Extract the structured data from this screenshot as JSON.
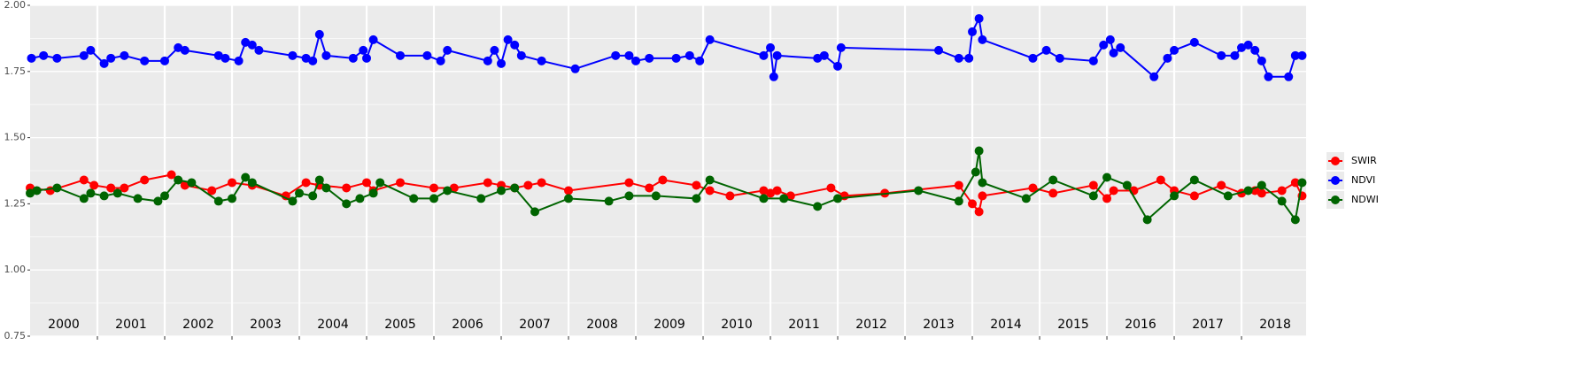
{
  "chart_data": {
    "type": "line",
    "xlim": [
      2000,
      2018.96
    ],
    "ylim": [
      0.75,
      2.0
    ],
    "yticks": [
      {
        "value": 0.75,
        "label": "0.75"
      },
      {
        "value": 1.0,
        "label": "1.00"
      },
      {
        "value": 1.25,
        "label": "1.25"
      },
      {
        "value": 1.5,
        "label": "1.50"
      },
      {
        "value": 1.75,
        "label": "1.75"
      },
      {
        "value": 2.0,
        "label": "2.00"
      }
    ],
    "xticks": [
      {
        "value": 2000.5,
        "label": "2000"
      },
      {
        "value": 2001.5,
        "label": "2001"
      },
      {
        "value": 2002.5,
        "label": "2002"
      },
      {
        "value": 2003.5,
        "label": "2003"
      },
      {
        "value": 2004.5,
        "label": "2004"
      },
      {
        "value": 2005.5,
        "label": "2005"
      },
      {
        "value": 2006.5,
        "label": "2006"
      },
      {
        "value": 2007.5,
        "label": "2007"
      },
      {
        "value": 2008.5,
        "label": "2008"
      },
      {
        "value": 2009.5,
        "label": "2009"
      },
      {
        "value": 2010.5,
        "label": "2010"
      },
      {
        "value": 2011.5,
        "label": "2011"
      },
      {
        "value": 2012.5,
        "label": "2012"
      },
      {
        "value": 2013.5,
        "label": "2013"
      },
      {
        "value": 2014.5,
        "label": "2014"
      },
      {
        "value": 2015.5,
        "label": "2015"
      },
      {
        "value": 2016.5,
        "label": "2016"
      },
      {
        "value": 2017.5,
        "label": "2017"
      },
      {
        "value": 2018.5,
        "label": "2018"
      }
    ],
    "xgrid": [
      2001,
      2002,
      2003,
      2004,
      2005,
      2006,
      2007,
      2008,
      2009,
      2010,
      2011,
      2012,
      2013,
      2014,
      2015,
      2016,
      2017,
      2018
    ],
    "grid": true,
    "legend": "right",
    "series": [
      {
        "name": "SWIR",
        "color": "#ff0000",
        "x": [
          2000.0,
          2000.3,
          2000.8,
          2000.95,
          2001.2,
          2001.4,
          2001.7,
          2002.1,
          2002.3,
          2002.7,
          2003.0,
          2003.3,
          2003.8,
          2004.1,
          2004.3,
          2004.7,
          2005.0,
          2005.1,
          2005.5,
          2006.0,
          2006.3,
          2006.8,
          2007.0,
          2007.2,
          2007.4,
          2007.6,
          2008.0,
          2008.9,
          2009.2,
          2009.4,
          2009.9,
          2010.1,
          2010.4,
          2010.9,
          2011.0,
          2011.1,
          2011.3,
          2011.9,
          2012.1,
          2012.7,
          2013.8,
          2014.0,
          2014.1,
          2014.15,
          2014.9,
          2015.2,
          2015.8,
          2016.0,
          2016.1,
          2016.4,
          2016.8,
          2017.0,
          2017.3,
          2017.7,
          2018.0,
          2018.2,
          2018.3,
          2018.6,
          2018.8,
          2018.9
        ],
        "values": [
          1.31,
          1.3,
          1.34,
          1.32,
          1.31,
          1.31,
          1.34,
          1.36,
          1.32,
          1.3,
          1.33,
          1.32,
          1.28,
          1.33,
          1.32,
          1.31,
          1.33,
          1.3,
          1.33,
          1.31,
          1.31,
          1.33,
          1.32,
          1.31,
          1.32,
          1.33,
          1.3,
          1.33,
          1.31,
          1.34,
          1.32,
          1.3,
          1.28,
          1.3,
          1.29,
          1.3,
          1.28,
          1.31,
          1.28,
          1.29,
          1.32,
          1.25,
          1.22,
          1.28,
          1.31,
          1.29,
          1.32,
          1.27,
          1.3,
          1.3,
          1.34,
          1.3,
          1.28,
          1.32,
          1.29,
          1.3,
          1.29,
          1.3,
          1.33,
          1.28
        ]
      },
      {
        "name": "NDVI",
        "color": "#0000ff",
        "x": [
          2000.02,
          2000.2,
          2000.4,
          2000.8,
          2000.9,
          2001.1,
          2001.2,
          2001.4,
          2001.7,
          2002.0,
          2002.2,
          2002.3,
          2002.8,
          2002.9,
          2003.1,
          2003.2,
          2003.3,
          2003.4,
          2003.9,
          2004.1,
          2004.2,
          2004.3,
          2004.4,
          2004.8,
          2004.95,
          2005.0,
          2005.1,
          2005.5,
          2005.9,
          2006.1,
          2006.2,
          2006.8,
          2006.9,
          2007.0,
          2007.1,
          2007.2,
          2007.3,
          2007.6,
          2008.1,
          2008.7,
          2008.9,
          2009.0,
          2009.2,
          2009.6,
          2009.8,
          2009.95,
          2010.1,
          2010.9,
          2011.0,
          2011.05,
          2011.1,
          2011.7,
          2011.8,
          2012.0,
          2012.05,
          2013.5,
          2013.8,
          2013.95,
          2014.0,
          2014.1,
          2014.15,
          2014.9,
          2015.1,
          2015.3,
          2015.8,
          2015.95,
          2016.05,
          2016.1,
          2016.2,
          2016.7,
          2016.9,
          2017.0,
          2017.3,
          2017.7,
          2017.9,
          2018.0,
          2018.1,
          2018.2,
          2018.3,
          2018.4,
          2018.7,
          2018.8,
          2018.9
        ],
        "values": [
          1.8,
          1.81,
          1.8,
          1.81,
          1.83,
          1.78,
          1.8,
          1.81,
          1.79,
          1.79,
          1.84,
          1.83,
          1.81,
          1.8,
          1.79,
          1.86,
          1.85,
          1.83,
          1.81,
          1.8,
          1.79,
          1.89,
          1.81,
          1.8,
          1.83,
          1.8,
          1.87,
          1.81,
          1.81,
          1.79,
          1.83,
          1.79,
          1.83,
          1.78,
          1.87,
          1.85,
          1.81,
          1.79,
          1.76,
          1.81,
          1.81,
          1.79,
          1.8,
          1.8,
          1.81,
          1.79,
          1.87,
          1.81,
          1.84,
          1.73,
          1.81,
          1.8,
          1.81,
          1.77,
          1.84,
          1.83,
          1.8,
          1.8,
          1.9,
          1.95,
          1.87,
          1.8,
          1.83,
          1.8,
          1.79,
          1.85,
          1.87,
          1.82,
          1.84,
          1.73,
          1.8,
          1.83,
          1.86,
          1.81,
          1.81,
          1.84,
          1.85,
          1.83,
          1.79,
          1.73,
          1.73,
          1.81,
          1.81
        ]
      },
      {
        "name": "NDWI",
        "color": "#006400",
        "x": [
          2000.0,
          2000.1,
          2000.4,
          2000.8,
          2000.9,
          2001.1,
          2001.3,
          2001.6,
          2001.9,
          2002.0,
          2002.2,
          2002.4,
          2002.8,
          2003.0,
          2003.2,
          2003.3,
          2003.9,
          2004.0,
          2004.2,
          2004.3,
          2004.4,
          2004.7,
          2004.9,
          2005.1,
          2005.2,
          2005.7,
          2006.0,
          2006.2,
          2006.7,
          2007.0,
          2007.2,
          2007.5,
          2008.0,
          2008.6,
          2008.9,
          2009.3,
          2009.9,
          2010.1,
          2010.9,
          2011.2,
          2011.7,
          2012.0,
          2013.2,
          2013.8,
          2014.05,
          2014.1,
          2014.15,
          2014.8,
          2015.2,
          2015.8,
          2016.0,
          2016.3,
          2016.6,
          2017.0,
          2017.3,
          2017.8,
          2018.1,
          2018.3,
          2018.6,
          2018.8,
          2018.9
        ],
        "values": [
          1.29,
          1.3,
          1.31,
          1.27,
          1.29,
          1.28,
          1.29,
          1.27,
          1.26,
          1.28,
          1.34,
          1.33,
          1.26,
          1.27,
          1.35,
          1.33,
          1.26,
          1.29,
          1.28,
          1.34,
          1.31,
          1.25,
          1.27,
          1.29,
          1.33,
          1.27,
          1.27,
          1.3,
          1.27,
          1.3,
          1.31,
          1.22,
          1.27,
          1.26,
          1.28,
          1.28,
          1.27,
          1.34,
          1.27,
          1.27,
          1.24,
          1.27,
          1.3,
          1.26,
          1.37,
          1.45,
          1.33,
          1.27,
          1.34,
          1.28,
          1.35,
          1.32,
          1.19,
          1.28,
          1.34,
          1.28,
          1.3,
          1.32,
          1.26,
          1.19,
          1.33
        ]
      }
    ]
  }
}
